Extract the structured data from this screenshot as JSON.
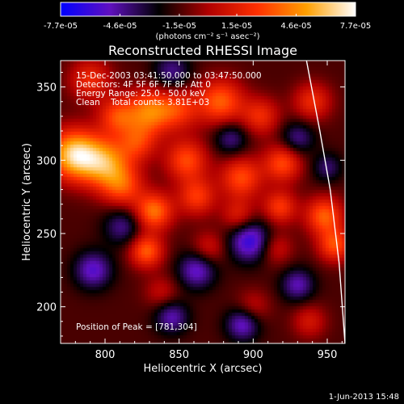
{
  "chart_data": {
    "type": "heatmap",
    "title": "Reconstructed RHESSI Image",
    "xlabel": "Heliocentric X (arcsec)",
    "ylabel": "Heliocentric Y (arcsec)",
    "xlim": [
      770,
      962
    ],
    "ylim": [
      175,
      368
    ],
    "x_ticks": [
      800,
      850,
      900,
      950
    ],
    "y_ticks": [
      200,
      250,
      300,
      350
    ],
    "colorbar": {
      "range": [
        -7.7e-05,
        7.7e-05
      ],
      "tick_labels": [
        "-7.7e-05",
        "-4.6e-05",
        "-1.5e-05",
        "1.5e-05",
        "4.6e-05",
        "7.7e-05"
      ],
      "unit_label": "(photons cm⁻² s⁻¹ asec⁻²)",
      "colors": [
        "#0000ff",
        "#6010c0",
        "#000000",
        "#b00000",
        "#ff3000",
        "#ffa000",
        "#ffffff"
      ]
    },
    "info_lines": [
      "15-Dec-2003 03:41:50.000 to 03:47:50.000",
      "Detectors: 4F 5F 6F 7F 8F, Att 0",
      "Energy Range: 25.0 - 50.0 keV",
      "Clean    Total counts: 3.81E+03"
    ],
    "peak_label": "Position of Peak = [781,304]",
    "peak_position": [
      781,
      304
    ],
    "limb_curve": [
      [
        936,
        368
      ],
      [
        945,
        320
      ],
      [
        952,
        280
      ],
      [
        958,
        230
      ],
      [
        962,
        175
      ]
    ],
    "sources": [
      {
        "x": 779,
        "y": 304,
        "amp": 7.7e-05,
        "sigma": 12
      },
      {
        "x": 800,
        "y": 298,
        "amp": 6e-05,
        "sigma": 12
      },
      {
        "x": 812,
        "y": 282,
        "amp": 4e-05,
        "sigma": 10
      },
      {
        "x": 822,
        "y": 312,
        "amp": 3.5e-05,
        "sigma": 9
      },
      {
        "x": 830,
        "y": 333,
        "amp": 5.5e-05,
        "sigma": 11
      },
      {
        "x": 808,
        "y": 330,
        "amp": 4e-05,
        "sigma": 9
      },
      {
        "x": 790,
        "y": 355,
        "amp": 3.5e-05,
        "sigma": 10
      },
      {
        "x": 833,
        "y": 265,
        "amp": 5.5e-05,
        "sigma": 9
      },
      {
        "x": 828,
        "y": 238,
        "amp": 5e-05,
        "sigma": 8
      },
      {
        "x": 855,
        "y": 300,
        "amp": 4.5e-05,
        "sigma": 10
      },
      {
        "x": 862,
        "y": 275,
        "amp": 4e-05,
        "sigma": 9
      },
      {
        "x": 850,
        "y": 335,
        "amp": 3.5e-05,
        "sigma": 10
      },
      {
        "x": 878,
        "y": 340,
        "amp": 5e-05,
        "sigma": 11
      },
      {
        "x": 892,
        "y": 288,
        "amp": 4.5e-05,
        "sigma": 10
      },
      {
        "x": 905,
        "y": 330,
        "amp": 3.5e-05,
        "sigma": 9
      },
      {
        "x": 890,
        "y": 262,
        "amp": 3e-05,
        "sigma": 8
      },
      {
        "x": 920,
        "y": 298,
        "amp": 4.5e-05,
        "sigma": 9
      },
      {
        "x": 918,
        "y": 268,
        "amp": 4e-05,
        "sigma": 8
      },
      {
        "x": 948,
        "y": 262,
        "amp": 5e-05,
        "sigma": 9
      },
      {
        "x": 955,
        "y": 242,
        "amp": 4.5e-05,
        "sigma": 8
      },
      {
        "x": 940,
        "y": 340,
        "amp": 3.5e-05,
        "sigma": 9
      },
      {
        "x": 915,
        "y": 240,
        "amp": 2.5e-05,
        "sigma": 8
      },
      {
        "x": 870,
        "y": 240,
        "amp": 2.5e-05,
        "sigma": 8
      },
      {
        "x": 838,
        "y": 210,
        "amp": 2e-05,
        "sigma": 8
      },
      {
        "x": 900,
        "y": 200,
        "amp": 2e-05,
        "sigma": 8
      },
      {
        "x": 938,
        "y": 190,
        "amp": 2.5e-05,
        "sigma": 8
      },
      {
        "x": 845,
        "y": 360,
        "amp": -3e-05,
        "sigma": 9
      },
      {
        "x": 885,
        "y": 315,
        "amp": -3e-05,
        "sigma": 8
      },
      {
        "x": 930,
        "y": 315,
        "amp": -3e-05,
        "sigma": 8
      },
      {
        "x": 898,
        "y": 245,
        "amp": -5e-05,
        "sigma": 10
      },
      {
        "x": 862,
        "y": 225,
        "amp": -4e-05,
        "sigma": 9
      },
      {
        "x": 792,
        "y": 225,
        "amp": -4e-05,
        "sigma": 9
      },
      {
        "x": 845,
        "y": 193,
        "amp": -3.5e-05,
        "sigma": 8
      },
      {
        "x": 893,
        "y": 188,
        "amp": -4e-05,
        "sigma": 8
      },
      {
        "x": 930,
        "y": 215,
        "amp": -3.5e-05,
        "sigma": 8
      },
      {
        "x": 812,
        "y": 255,
        "amp": -3e-05,
        "sigma": 9
      },
      {
        "x": 950,
        "y": 295,
        "amp": -2.5e-05,
        "sigma": 7
      }
    ]
  },
  "footer": {
    "timestamp": "1-Jun-2013 15:48"
  }
}
